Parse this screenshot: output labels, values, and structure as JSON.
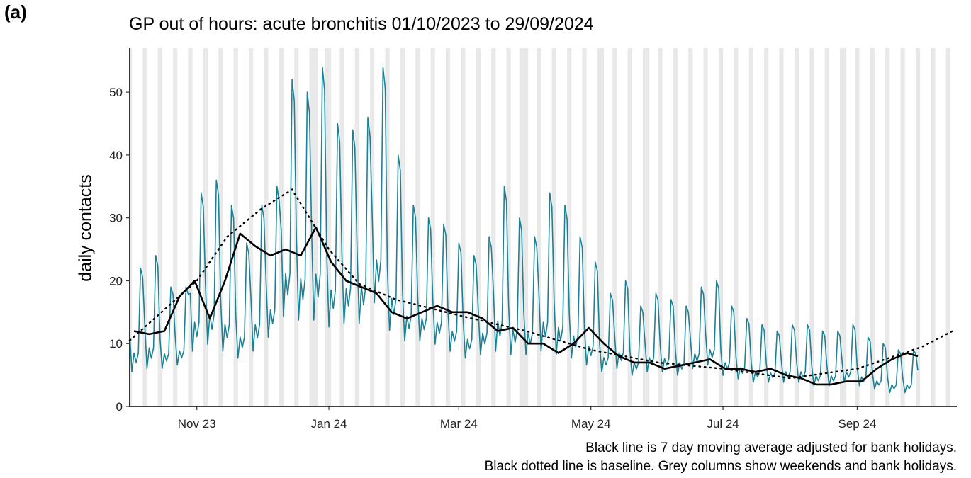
{
  "panel_label": "(a)",
  "chart_data": {
    "type": "line",
    "title": "GP out of hours: acute bronchitis 01/10/2023 to 29/09/2024",
    "xlabel": "",
    "ylabel": "daily contacts",
    "start_date": "2023-10-01",
    "end_date": "2024-09-29",
    "xlim": [
      "2023-10-01",
      "2024-10-17"
    ],
    "ylim": [
      0,
      57
    ],
    "yticks": [
      0,
      10,
      20,
      30,
      40,
      50
    ],
    "xticks": [
      {
        "date": "2023-11-01",
        "label": "Nov 23"
      },
      {
        "date": "2024-01-01",
        "label": "Jan 24"
      },
      {
        "date": "2024-03-01",
        "label": "Mar 24"
      },
      {
        "date": "2024-05-01",
        "label": "May 24"
      },
      {
        "date": "2024-07-01",
        "label": "Jul 24"
      },
      {
        "date": "2024-09-01",
        "label": "Sep 24"
      }
    ],
    "grid": false,
    "shading": "weekends and bank holidays",
    "bank_holidays": [
      "2023-12-25",
      "2023-12-26",
      "2024-01-01",
      "2024-03-29",
      "2024-04-01",
      "2024-05-06",
      "2024-05-27",
      "2024-08-26"
    ],
    "series": [
      {
        "name": "daily contacts",
        "color": "#1a8296",
        "style": "solid",
        "weekly_pattern": [
          11,
          7,
          9,
          8,
          9,
          18,
          17
        ],
        "weekly_profile": [
          [
            1,
            10,
            22
          ],
          [
            2,
            11,
            24
          ],
          [
            3,
            11,
            19
          ],
          [
            4,
            12,
            19
          ],
          [
            5,
            16,
            34
          ],
          [
            6,
            18,
            36
          ],
          [
            7,
            16,
            32
          ],
          [
            8,
            14,
            26
          ],
          [
            9,
            16,
            32
          ],
          [
            10,
            20,
            35
          ],
          [
            11,
            26,
            52
          ],
          [
            12,
            25,
            50
          ],
          [
            13,
            25,
            54
          ],
          [
            14,
            23,
            45
          ],
          [
            15,
            24,
            44
          ],
          [
            16,
            24,
            46
          ],
          [
            17,
            30,
            54
          ],
          [
            18,
            22,
            40
          ],
          [
            19,
            19,
            32
          ],
          [
            20,
            19,
            30
          ],
          [
            21,
            18,
            29
          ],
          [
            22,
            16,
            26
          ],
          [
            23,
            14,
            24
          ],
          [
            24,
            15,
            27
          ],
          [
            25,
            16,
            35
          ],
          [
            26,
            15,
            30
          ],
          [
            27,
            15,
            27
          ],
          [
            28,
            16,
            34
          ],
          [
            29,
            15,
            32
          ],
          [
            30,
            14,
            27
          ],
          [
            31,
            12,
            23
          ],
          [
            32,
            10,
            18
          ],
          [
            33,
            11,
            20
          ],
          [
            34,
            9,
            16
          ],
          [
            35,
            10,
            18
          ],
          [
            36,
            10,
            17
          ],
          [
            37,
            9,
            16
          ],
          [
            38,
            11,
            19
          ],
          [
            39,
            12,
            20
          ],
          [
            40,
            9,
            16
          ],
          [
            41,
            8,
            14
          ],
          [
            42,
            7,
            13
          ],
          [
            43,
            7,
            12
          ],
          [
            44,
            7,
            13
          ],
          [
            45,
            7,
            13
          ],
          [
            46,
            6,
            12
          ],
          [
            47,
            6,
            12
          ],
          [
            48,
            7,
            13
          ],
          [
            49,
            6,
            11
          ],
          [
            50,
            5,
            10
          ],
          [
            51,
            4,
            9
          ],
          [
            52,
            4,
            9
          ],
          [
            53,
            5,
            11
          ],
          [
            54,
            7,
            15
          ],
          [
            55,
            8,
            19
          ]
        ]
      },
      {
        "name": "7 day moving average",
        "color": "#000000",
        "style": "solid",
        "x": [
          "2023-10-03",
          "2023-10-10",
          "2023-10-17",
          "2023-10-24",
          "2023-10-31",
          "2023-11-07",
          "2023-11-14",
          "2023-11-21",
          "2023-11-28",
          "2023-12-05",
          "2023-12-12",
          "2023-12-19",
          "2023-12-26",
          "2024-01-02",
          "2024-01-09",
          "2024-01-16",
          "2024-01-23",
          "2024-01-30",
          "2024-02-06",
          "2024-02-13",
          "2024-02-20",
          "2024-02-27",
          "2024-03-05",
          "2024-03-12",
          "2024-03-19",
          "2024-03-26",
          "2024-04-02",
          "2024-04-09",
          "2024-04-16",
          "2024-04-23",
          "2024-04-30",
          "2024-05-07",
          "2024-05-14",
          "2024-05-21",
          "2024-05-28",
          "2024-06-04",
          "2024-06-11",
          "2024-06-18",
          "2024-06-25",
          "2024-07-02",
          "2024-07-09",
          "2024-07-16",
          "2024-07-23",
          "2024-07-30",
          "2024-08-06",
          "2024-08-13",
          "2024-08-20",
          "2024-08-27",
          "2024-09-03",
          "2024-09-10",
          "2024-09-17",
          "2024-09-24",
          "2024-09-29"
        ],
        "values": [
          12,
          11.5,
          12,
          17.5,
          20,
          14,
          20,
          27.5,
          25.5,
          24,
          25,
          24,
          28.5,
          23,
          20,
          19,
          18,
          15,
          14,
          15,
          16,
          15,
          15,
          14,
          12,
          12.5,
          10,
          10,
          8.5,
          10,
          12.5,
          10,
          8,
          7,
          7,
          6,
          6.5,
          7,
          7.5,
          6,
          6,
          5.5,
          6,
          5,
          4.5,
          3.5,
          3.5,
          4,
          4,
          6,
          7.5,
          8.5,
          8
        ]
      },
      {
        "name": "baseline",
        "color": "#000000",
        "style": "dotted",
        "x": [
          "2023-10-01",
          "2023-11-01",
          "2023-11-15",
          "2023-12-01",
          "2023-12-15",
          "2024-01-01",
          "2024-01-15",
          "2024-02-01",
          "2024-03-01",
          "2024-04-01",
          "2024-05-01",
          "2024-06-01",
          "2024-07-01",
          "2024-08-01",
          "2024-09-01",
          "2024-10-01",
          "2024-10-15"
        ],
        "values": [
          10.5,
          20,
          27,
          31.5,
          34.5,
          25,
          19.5,
          17,
          14.5,
          12,
          9,
          7,
          6,
          4.5,
          6,
          9.5,
          12
        ]
      }
    ]
  },
  "captions": [
    "Black line is 7 day moving average adjusted for bank holidays.",
    "Black dotted line is baseline. Grey columns show weekends and bank holidays."
  ]
}
